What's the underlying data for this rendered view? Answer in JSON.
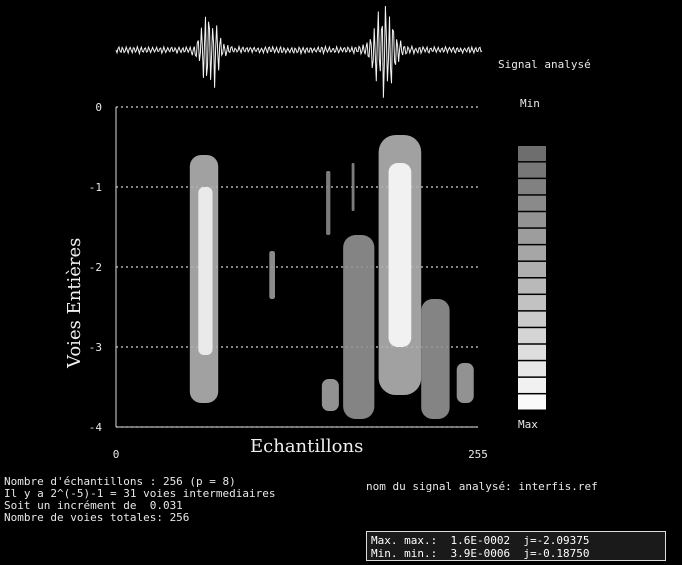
{
  "chart_data": {
    "type": "heatmap",
    "title": "",
    "xlabel": "Echantillons",
    "ylabel": "Voies Entières",
    "x_ticks": [
      "0",
      "255"
    ],
    "y_ticks": [
      "0",
      "-1",
      "-2",
      "-3",
      "-4"
    ],
    "xlim": [
      0,
      255
    ],
    "ylim": [
      -4,
      0
    ],
    "grid": true,
    "signal_label": "Signal analysé",
    "colorbar": {
      "top_label": "Min",
      "bottom_label": "Max",
      "levels": 16
    },
    "blobs": [
      {
        "x0": 52,
        "x1": 72,
        "y_top": -0.6,
        "y_bottom": -3.7,
        "intensity": 0.55
      },
      {
        "x0": 58,
        "x1": 68,
        "y_top": -1.0,
        "y_bottom": -3.1,
        "intensity": 0.95
      },
      {
        "x0": 185,
        "x1": 215,
        "y_top": -0.35,
        "y_bottom": -3.6,
        "intensity": 0.55
      },
      {
        "x0": 192,
        "x1": 208,
        "y_top": -0.7,
        "y_bottom": -3.0,
        "intensity": 1.0
      },
      {
        "x0": 160,
        "x1": 182,
        "y_top": -1.6,
        "y_bottom": -3.9,
        "intensity": 0.35
      },
      {
        "x0": 215,
        "x1": 235,
        "y_top": -2.4,
        "y_bottom": -3.9,
        "intensity": 0.35
      },
      {
        "x0": 145,
        "x1": 157,
        "y_top": -3.4,
        "y_bottom": -3.8,
        "intensity": 0.45
      },
      {
        "x0": 240,
        "x1": 252,
        "y_top": -3.2,
        "y_bottom": -3.7,
        "intensity": 0.45
      },
      {
        "x0": 108,
        "x1": 112,
        "y_top": -1.8,
        "y_bottom": -2.4,
        "intensity": 0.4
      },
      {
        "x0": 148,
        "x1": 151,
        "y_top": -0.8,
        "y_bottom": -1.6,
        "intensity": 0.3
      },
      {
        "x0": 166,
        "x1": 168,
        "y_top": -0.7,
        "y_bottom": -1.3,
        "intensity": 0.3
      }
    ]
  },
  "info": {
    "line1": "Nombre d'échantillons : 256 (p = 8)",
    "line2": "Il y a 2^(-5)-1 = 31 voies intermediaires",
    "line3": "Soit un incrément de  0.031",
    "line4": "Nombre de voies totales: 256"
  },
  "signal_name": "nom du signal analysé: interfis.ref",
  "maxmin": {
    "max_line": "Max. max.:  1.6E-0002  j=-2.09375",
    "min_line": "Min. min.:  3.9E-0006  j=-0.18750"
  }
}
